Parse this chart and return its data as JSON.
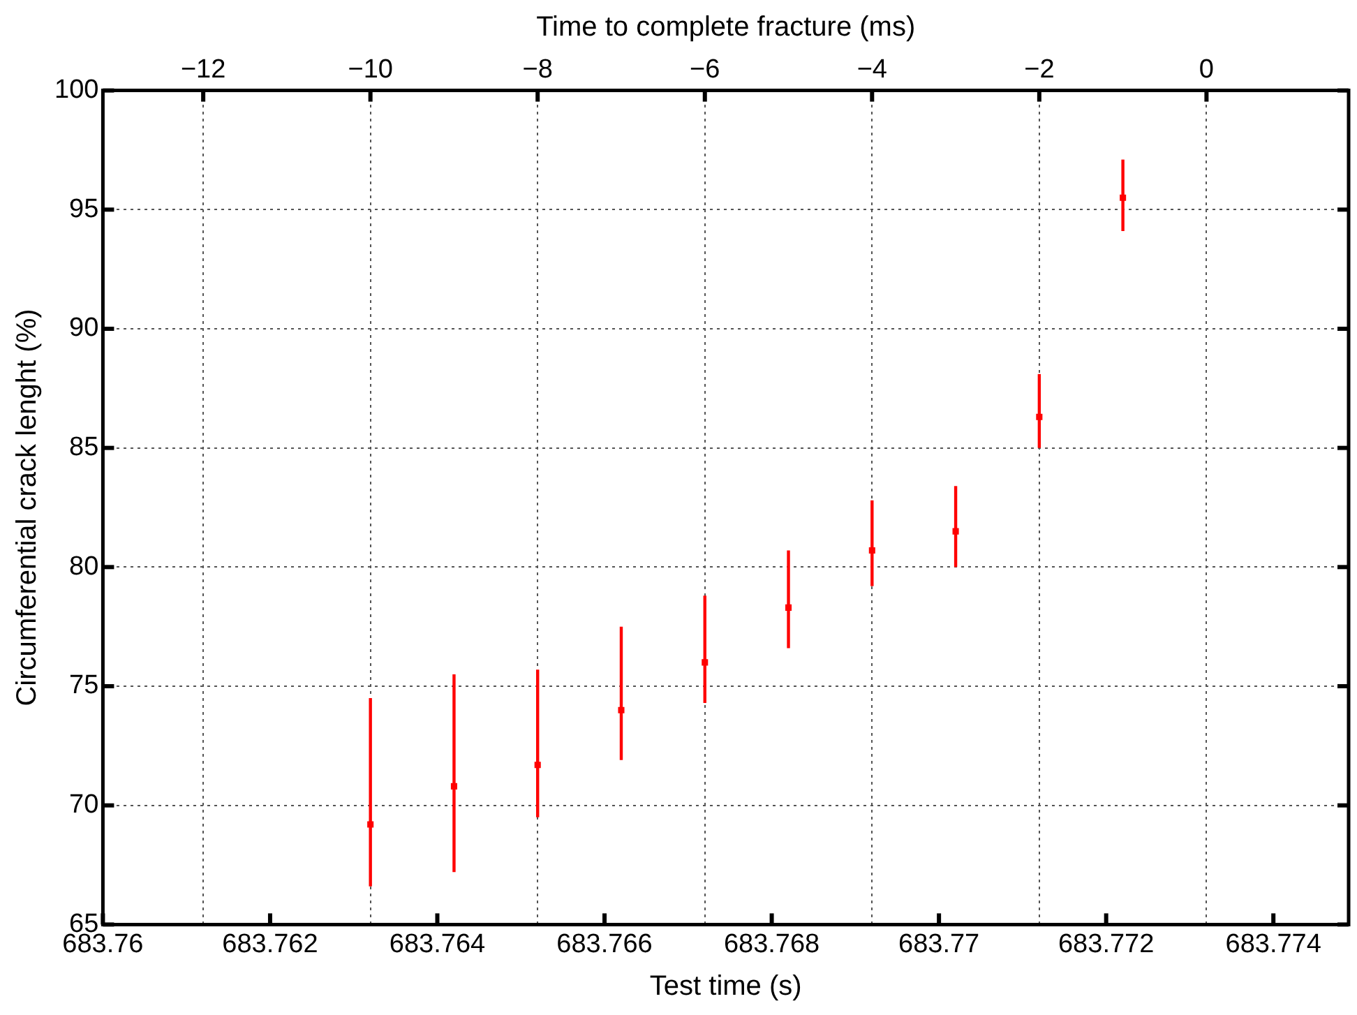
{
  "chart_data": {
    "type": "scatter",
    "xlabel": "Test time (s)",
    "x2label": "Time to complete fracture (ms)",
    "ylabel": "Circumferential crack lenght (%)",
    "x": [
      683.7632,
      683.7642,
      683.7652,
      683.7662,
      683.7672,
      683.7682,
      683.7692,
      683.7702,
      683.7712,
      683.7722
    ],
    "series": [
      {
        "color": "#ff0000",
        "values": [
          69.2,
          70.8,
          71.7,
          74.0,
          76.0,
          78.3,
          80.7,
          81.5,
          86.3,
          95.5
        ],
        "errors": [
          [
            66.6,
            74.5
          ],
          [
            67.2,
            75.5
          ],
          [
            69.5,
            75.7
          ],
          [
            71.9,
            77.5
          ],
          [
            74.3,
            78.8
          ],
          [
            76.6,
            80.7
          ],
          [
            79.2,
            82.8
          ],
          [
            80.0,
            83.4
          ],
          [
            85.0,
            88.1
          ],
          [
            94.1,
            97.1
          ]
        ]
      }
    ],
    "xlim": [
      683.76,
      683.7749
    ],
    "xticks": [
      683.76,
      683.762,
      683.764,
      683.766,
      683.768,
      683.77,
      683.772,
      683.774
    ],
    "x2lim": [
      -13.2,
      1.7
    ],
    "x2ticks": [
      {
        "value": -12,
        "label": "−12"
      },
      {
        "value": -10,
        "label": "−10"
      },
      {
        "value": -8,
        "label": "−8"
      },
      {
        "value": -6,
        "label": "−6"
      },
      {
        "value": -4,
        "label": "−4"
      },
      {
        "value": -2,
        "label": "−2"
      },
      0
    ],
    "ylim": [
      65,
      100
    ],
    "yticks": [
      65,
      70,
      75,
      80,
      85,
      90,
      95,
      100
    ],
    "grid": true,
    "marker": "square"
  }
}
